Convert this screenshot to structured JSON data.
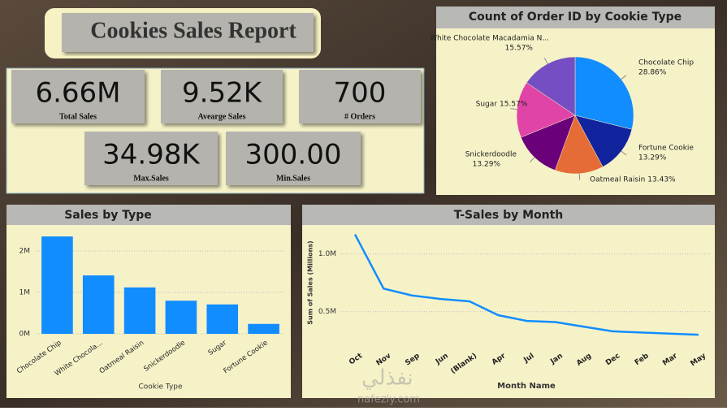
{
  "header": {
    "title": "Cookies Sales Report"
  },
  "kpis": [
    {
      "value": "6.66M",
      "label": "Total Sales"
    },
    {
      "value": "9.52K",
      "label": "Avearge Sales"
    },
    {
      "value": "700",
      "label": "# Orders"
    },
    {
      "value": "34.98K",
      "label": "Max.Sales"
    },
    {
      "value": "300.00",
      "label": "Min.Sales"
    }
  ],
  "watermark": {
    "arabic": "نفذلي",
    "site": "nafezly.com"
  },
  "chart_data": [
    {
      "type": "pie",
      "title": "Count of Order ID by Cookie Type",
      "categories": [
        "Chocolate Chip",
        "Fortune Cookie",
        "Oatmeal Raisin",
        "Snickerdoodle",
        "Sugar",
        "White Chocolate Macadamia N..."
      ],
      "values": [
        28.86,
        13.29,
        13.43,
        13.29,
        15.57,
        15.57
      ],
      "value_labels": [
        "28.86%",
        "13.29%",
        "13.43%",
        "13.29%",
        "15.57%",
        "15.57%"
      ],
      "colors": [
        "#118dff",
        "#12239e",
        "#e66c37",
        "#6b007b",
        "#e044a7",
        "#744ec2"
      ]
    },
    {
      "type": "bar",
      "title": "Sales by Type",
      "x_label": "Cookie Type",
      "categories": [
        "Chocolate Chip",
        "White Chocola...",
        "Oatmeal Raisin",
        "Snickerdoodle",
        "Sugar",
        "Fortune Cookie"
      ],
      "values": [
        2350000,
        1410000,
        1120000,
        800000,
        710000,
        240000
      ],
      "color": "#118dff",
      "ylim": [
        0,
        2470000
      ],
      "yticks": [
        {
          "value": 0,
          "label": "0M"
        },
        {
          "value": 1000000,
          "label": "1M"
        },
        {
          "value": 2000000,
          "label": "2M"
        }
      ],
      "grid": true
    },
    {
      "type": "line",
      "title": "T-Sales by Month",
      "x_label": "Month Name",
      "y_label": "Sum of Sales (Millions)",
      "categories": [
        "Oct",
        "Nov",
        "Sep",
        "Jun",
        "(Blank)",
        "Apr",
        "Jul",
        "Jan",
        "Aug",
        "Dec",
        "Feb",
        "Mar",
        "May"
      ],
      "values": [
        1170000,
        700000,
        640000,
        610000,
        590000,
        470000,
        420000,
        410000,
        370000,
        330000,
        320000,
        310000,
        300000
      ],
      "color": "#118dff",
      "ylim": [
        280000,
        1230000
      ],
      "yticks": [
        {
          "value": 500000,
          "label": "0.5M"
        },
        {
          "value": 1000000,
          "label": "1.0M"
        }
      ],
      "grid": true
    }
  ]
}
